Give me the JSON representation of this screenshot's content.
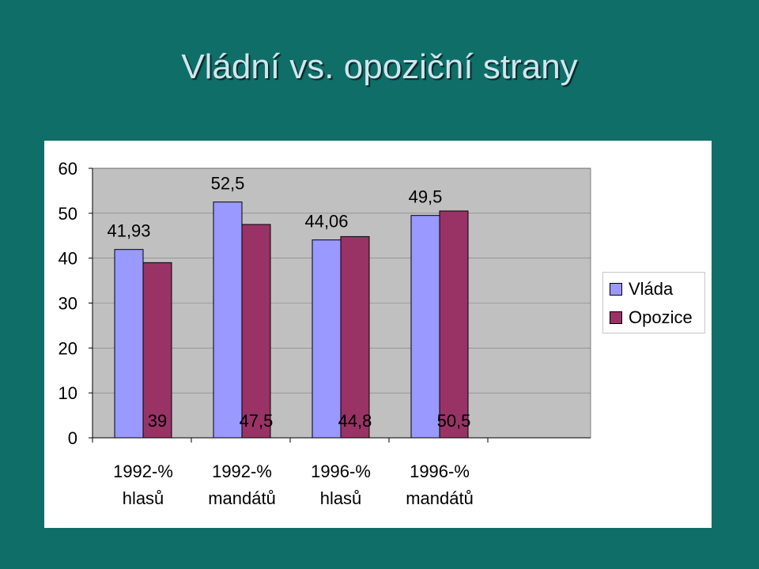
{
  "slide": {
    "title": "Vládní vs. opoziční strany"
  },
  "chart_data": {
    "type": "bar",
    "categories": [
      [
        "1992-%",
        "hlasů"
      ],
      [
        "1992-%",
        "mandátů"
      ],
      [
        "1996-%",
        "hlasů"
      ],
      [
        "1996-%",
        "mandátů"
      ]
    ],
    "series": [
      {
        "name": "Vláda",
        "values": [
          41.93,
          52.5,
          44.06,
          49.5
        ],
        "labels": [
          "41,93",
          "52,5",
          "44,06",
          "49,5"
        ],
        "color": "#9999ff"
      },
      {
        "name": "Opozice",
        "values": [
          39,
          47.5,
          44.8,
          50.5
        ],
        "labels": [
          "39",
          "47,5",
          "44,8",
          "50,5"
        ],
        "color": "#993366"
      }
    ],
    "ylim": [
      0,
      60
    ],
    "yticks": [
      "0",
      "10",
      "20",
      "30",
      "40",
      "50",
      "60"
    ],
    "grid": true,
    "plot_background": "#c0c0c0",
    "legend_position": "right"
  }
}
